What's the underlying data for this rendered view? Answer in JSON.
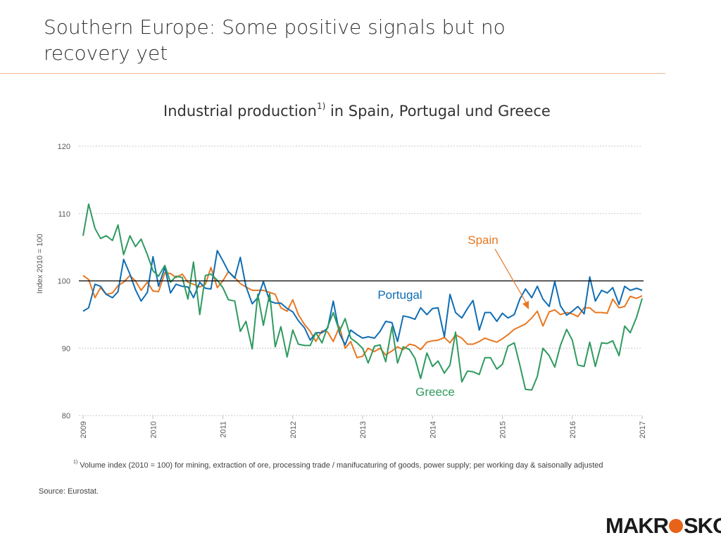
{
  "slide": {
    "title": "Southern Europe: Some positive signals but no recovery yet",
    "accent_color": "#f3b48c"
  },
  "chart_data": {
    "type": "line",
    "title": "Industrial production",
    "title_superscript": "1)",
    "title_suffix": " in Spain, Portugal und Greece",
    "ylabel": "Index 2010 = 100",
    "xlabel": "",
    "ylim": [
      80,
      120
    ],
    "yticks": [
      80,
      90,
      100,
      110,
      120
    ],
    "xlim": [
      2009,
      2017
    ],
    "xticks": [
      "2009",
      "2010",
      "2011",
      "2012",
      "2013",
      "2014",
      "2015",
      "2016",
      "2017"
    ],
    "reference_line": 100,
    "grid": "horizontal dotted",
    "series": [
      {
        "name": "Spain",
        "color": "#e87722",
        "x": [
          2009.0,
          2009.08,
          2009.17,
          2009.25,
          2009.33,
          2009.42,
          2009.5,
          2009.58,
          2009.67,
          2009.75,
          2009.83,
          2009.92,
          2010.0,
          2010.08,
          2010.17,
          2010.25,
          2010.33,
          2010.42,
          2010.5,
          2010.58,
          2010.67,
          2010.75,
          2010.83,
          2010.92,
          2011.0,
          2011.08,
          2011.17,
          2011.25,
          2011.33,
          2011.42,
          2011.5,
          2011.58,
          2011.67,
          2011.75,
          2011.83,
          2011.92,
          2012.0,
          2012.08,
          2012.17,
          2012.25,
          2012.33,
          2012.42,
          2012.5,
          2012.58,
          2012.67,
          2012.75,
          2012.83,
          2012.92,
          2013.0,
          2013.08,
          2013.17,
          2013.25,
          2013.33,
          2013.42,
          2013.5,
          2013.58,
          2013.67,
          2013.75,
          2013.83,
          2013.92,
          2014.0,
          2014.08,
          2014.17,
          2014.25,
          2014.33,
          2014.42,
          2014.5,
          2014.58,
          2014.67,
          2014.75,
          2014.83,
          2014.92,
          2015.0,
          2015.08,
          2015.17,
          2015.25,
          2015.33,
          2015.42,
          2015.5,
          2015.58,
          2015.67,
          2015.75,
          2015.83,
          2015.92,
          2016.0,
          2016.08,
          2016.17,
          2016.25,
          2016.33,
          2016.42,
          2016.5,
          2016.58,
          2016.67,
          2016.75,
          2016.83,
          2016.92,
          2017.0
        ],
        "y": [
          100.8,
          100.2,
          97.5,
          99.0,
          98.0,
          98.2,
          99.3,
          99.8,
          100.8,
          100.0,
          98.6,
          99.8,
          98.5,
          98.4,
          101.2,
          101.1,
          100.5,
          101.0,
          99.8,
          99.5,
          99.1,
          99.5,
          102.0,
          99.0,
          100.0,
          101.4,
          100.5,
          99.6,
          99.1,
          98.6,
          98.6,
          98.6,
          98.3,
          98.0,
          96.0,
          95.5,
          97.2,
          95.0,
          93.5,
          92.5,
          91.0,
          92.6,
          92.4,
          91.0,
          93.2,
          90.0,
          91.0,
          88.6,
          88.8,
          90.0,
          89.5,
          90.0,
          89.0,
          89.6,
          90.2,
          89.8,
          90.6,
          90.4,
          89.8,
          90.9,
          91.1,
          91.2,
          91.6,
          90.8,
          92.0,
          91.5,
          90.6,
          90.6,
          91.0,
          91.5,
          91.2,
          90.9,
          91.4,
          92.0,
          92.8,
          93.2,
          93.6,
          94.5,
          95.5,
          93.3,
          95.4,
          95.7,
          95.0,
          95.3,
          95.1,
          94.7,
          96.0,
          96.0,
          95.3,
          95.3,
          95.2,
          97.3,
          96.0,
          96.2,
          97.7,
          97.4,
          97.8
        ]
      },
      {
        "name": "Portugal",
        "color": "#0f6db3",
        "x": [
          2009.0,
          2009.08,
          2009.17,
          2009.25,
          2009.33,
          2009.42,
          2009.5,
          2009.58,
          2009.67,
          2009.75,
          2009.83,
          2009.92,
          2010.0,
          2010.08,
          2010.17,
          2010.25,
          2010.33,
          2010.42,
          2010.5,
          2010.58,
          2010.67,
          2010.75,
          2010.83,
          2010.92,
          2011.0,
          2011.08,
          2011.17,
          2011.25,
          2011.33,
          2011.42,
          2011.5,
          2011.58,
          2011.67,
          2011.75,
          2011.83,
          2011.92,
          2012.0,
          2012.08,
          2012.17,
          2012.25,
          2012.33,
          2012.42,
          2012.5,
          2012.58,
          2012.67,
          2012.75,
          2012.83,
          2012.92,
          2013.0,
          2013.08,
          2013.17,
          2013.25,
          2013.33,
          2013.42,
          2013.5,
          2013.58,
          2013.67,
          2013.75,
          2013.83,
          2013.92,
          2014.0,
          2014.08,
          2014.17,
          2014.25,
          2014.33,
          2014.42,
          2014.5,
          2014.58,
          2014.67,
          2014.75,
          2014.83,
          2014.92,
          2015.0,
          2015.08,
          2015.17,
          2015.25,
          2015.33,
          2015.42,
          2015.5,
          2015.58,
          2015.67,
          2015.75,
          2015.83,
          2015.92,
          2016.0,
          2016.08,
          2016.17,
          2016.25,
          2016.33,
          2016.42,
          2016.5,
          2016.58,
          2016.67,
          2016.75,
          2016.83,
          2016.92,
          2017.0
        ],
        "y": [
          95.5,
          96.0,
          99.5,
          99.2,
          98.0,
          97.5,
          98.4,
          103.2,
          101.0,
          98.7,
          97.0,
          98.3,
          103.6,
          99.2,
          102.0,
          98.2,
          99.5,
          99.2,
          99.1,
          97.5,
          99.8,
          98.9,
          98.8,
          104.5,
          103.0,
          101.4,
          100.4,
          103.5,
          99.2,
          96.6,
          97.5,
          99.9,
          97.0,
          96.7,
          96.7,
          95.9,
          95.4,
          94.1,
          93.0,
          91.2,
          92.3,
          92.3,
          93.0,
          97.0,
          92.2,
          90.5,
          92.7,
          92.0,
          91.5,
          91.7,
          91.5,
          92.5,
          94.0,
          93.8,
          91.0,
          94.8,
          94.6,
          94.3,
          96.0,
          95.0,
          95.9,
          96.0,
          91.7,
          98.0,
          95.3,
          94.5,
          95.9,
          97.1,
          92.7,
          95.3,
          95.3,
          94.0,
          95.2,
          94.5,
          95.0,
          97.3,
          98.8,
          97.5,
          99.2,
          97.3,
          96.2,
          99.9,
          96.3,
          94.9,
          95.5,
          96.2,
          95.1,
          100.6,
          97.0,
          98.6,
          98.2,
          99.0,
          96.5,
          99.2,
          98.6,
          98.9,
          98.6
        ]
      },
      {
        "name": "Greece",
        "color": "#2e9a5f",
        "x": [
          2009.0,
          2009.08,
          2009.17,
          2009.25,
          2009.33,
          2009.42,
          2009.5,
          2009.58,
          2009.67,
          2009.75,
          2009.83,
          2009.92,
          2010.0,
          2010.08,
          2010.17,
          2010.25,
          2010.33,
          2010.42,
          2010.5,
          2010.58,
          2010.67,
          2010.75,
          2010.83,
          2010.92,
          2011.0,
          2011.08,
          2011.17,
          2011.25,
          2011.33,
          2011.42,
          2011.5,
          2011.58,
          2011.67,
          2011.75,
          2011.83,
          2011.92,
          2012.0,
          2012.08,
          2012.17,
          2012.25,
          2012.33,
          2012.42,
          2012.5,
          2012.58,
          2012.67,
          2012.75,
          2012.83,
          2012.92,
          2013.0,
          2013.08,
          2013.17,
          2013.25,
          2013.33,
          2013.42,
          2013.5,
          2013.58,
          2013.67,
          2013.75,
          2013.83,
          2013.92,
          2014.0,
          2014.08,
          2014.17,
          2014.25,
          2014.33,
          2014.42,
          2014.5,
          2014.58,
          2014.67,
          2014.75,
          2014.83,
          2014.92,
          2015.0,
          2015.08,
          2015.17,
          2015.25,
          2015.33,
          2015.42,
          2015.5,
          2015.58,
          2015.67,
          2015.75,
          2015.83,
          2015.92,
          2016.0,
          2016.08,
          2016.17,
          2016.25,
          2016.33,
          2016.42,
          2016.5,
          2016.58,
          2016.67,
          2016.75,
          2016.83,
          2016.92,
          2017.0
        ],
        "y": [
          106.7,
          111.4,
          107.8,
          106.3,
          106.7,
          106.0,
          108.3,
          103.9,
          106.7,
          105.1,
          106.2,
          103.9,
          101.5,
          100.7,
          102.3,
          99.8,
          100.7,
          100.5,
          97.3,
          102.8,
          95.0,
          100.8,
          101.0,
          100.1,
          99.0,
          97.2,
          97.0,
          92.5,
          94.0,
          89.9,
          98.0,
          93.4,
          98.1,
          90.2,
          93.2,
          88.7,
          92.7,
          90.6,
          90.4,
          90.4,
          92.3,
          90.8,
          93.2,
          95.3,
          92.5,
          94.4,
          91.5,
          90.8,
          90.0,
          87.8,
          90.3,
          90.5,
          88.0,
          93.2,
          87.8,
          90.2,
          89.8,
          88.5,
          85.5,
          89.3,
          87.3,
          88.1,
          86.3,
          87.5,
          92.4,
          85.0,
          86.6,
          86.5,
          86.1,
          88.6,
          88.6,
          86.9,
          87.6,
          90.3,
          90.8,
          87.5,
          83.9,
          83.8,
          85.8,
          90.0,
          88.9,
          87.2,
          90.4,
          92.8,
          91.2,
          87.5,
          87.3,
          90.9,
          87.3,
          90.8,
          90.7,
          91.1,
          88.9,
          93.3,
          92.3,
          94.6,
          97.4
        ]
      }
    ],
    "annotations": [
      {
        "text": "Spain",
        "series": "Spain"
      },
      {
        "text": "Portugal",
        "series": "Portugal"
      },
      {
        "text": "Greece",
        "series": "Greece"
      }
    ]
  },
  "footnote": {
    "marker": "1)",
    "text": " Volume index (2010 = 100) for mining, extraction of ore, processing trade / manifucaturing of goods, power supply; per working day & saisonally adjusted"
  },
  "source": "Source: Eurostat.",
  "logo": {
    "text_left": "MAKR",
    "text_right": "SKOP",
    "brand_color": "#e8631a"
  }
}
